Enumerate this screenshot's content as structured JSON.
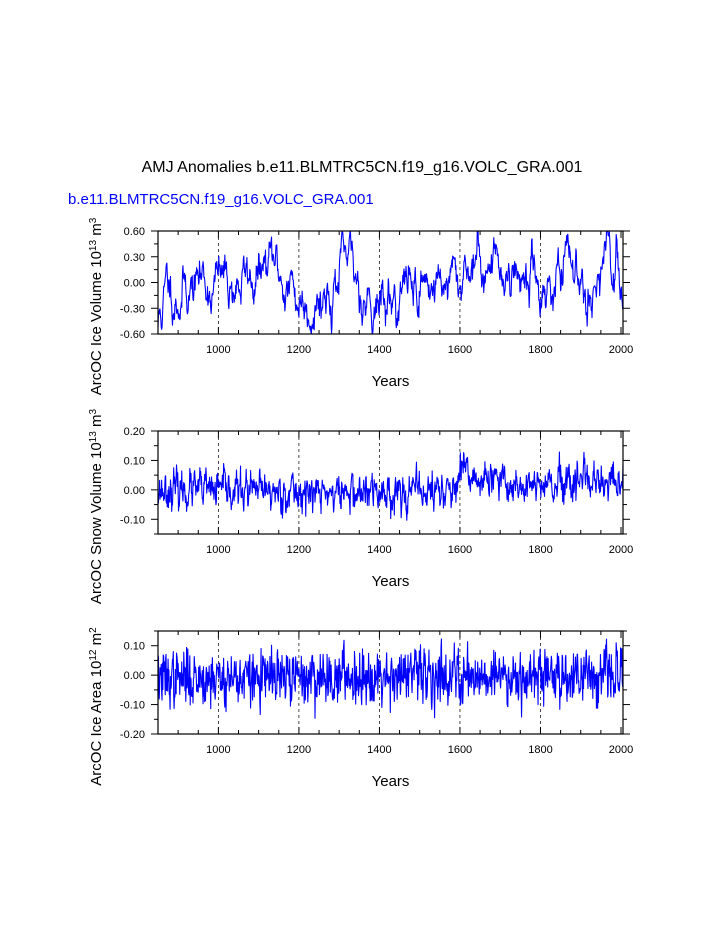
{
  "header": {
    "title": "AMJ Anomalies b.e11.BLMTRC5CN.f19_g16.VOLC_GRA.001",
    "subtitle": "b.e11.BLMTRC5CN.f19_g16.VOLC_GRA.001"
  },
  "colors": {
    "series": "#0000ff",
    "subtitle": "#0000ff",
    "axes": "#000000",
    "grid": "#000000"
  },
  "chart_data": [
    {
      "type": "line",
      "id": "ice-volume",
      "title": "",
      "xlabel": "Years",
      "ylabel": "ArcOC Ice Volume 10",
      "ylabel_exp": "13",
      "ylabel_unit": "m",
      "ylabel_unit_exp": "3",
      "xlim": [
        850,
        2005
      ],
      "ylim": [
        -0.6,
        0.6
      ],
      "xticks": [
        1000,
        1200,
        1400,
        1600,
        1800,
        2000
      ],
      "yticks": [
        -0.6,
        -0.3,
        0.0,
        0.3,
        0.6
      ],
      "ytick_labels": [
        "-0.60",
        "-0.30",
        "0.00",
        "0.30",
        "0.60"
      ],
      "vgrid": [
        1000,
        1200,
        1400,
        1600,
        1800
      ],
      "series": [
        {
          "name": "b.e11.BLMTRC5CN.f19_g16.VOLC_GRA.001",
          "seed": 11,
          "noise": 0.09,
          "persistence": 0.9,
          "max_amp": 0.6,
          "anchors": [
            [
              850,
              -0.5
            ],
            [
              870,
              -0.1
            ],
            [
              950,
              0.02
            ],
            [
              1050,
              0.0
            ],
            [
              1140,
              0.15
            ],
            [
              1200,
              -0.2
            ],
            [
              1260,
              -0.1
            ],
            [
              1310,
              0.12
            ],
            [
              1360,
              -0.05
            ],
            [
              1420,
              -0.25
            ],
            [
              1480,
              0.0
            ],
            [
              1560,
              0.05
            ],
            [
              1600,
              -0.1
            ],
            [
              1610,
              0.25
            ],
            [
              1700,
              0.2
            ],
            [
              1770,
              0.05
            ],
            [
              1800,
              0.0
            ],
            [
              1880,
              0.1
            ],
            [
              1960,
              0.1
            ],
            [
              2005,
              0.05
            ]
          ]
        }
      ]
    },
    {
      "type": "line",
      "id": "snow-volume",
      "title": "",
      "xlabel": "Years",
      "ylabel": "ArcOC Snow Volume 10",
      "ylabel_exp": "13",
      "ylabel_unit": "m",
      "ylabel_unit_exp": "3",
      "xlim": [
        850,
        2005
      ],
      "ylim": [
        -0.15,
        0.2
      ],
      "xticks": [
        1000,
        1200,
        1400,
        1600,
        1800,
        2000
      ],
      "yticks": [
        -0.1,
        0.0,
        0.1,
        0.2
      ],
      "ytick_labels": [
        "-0.10",
        "0.00",
        "0.10",
        "0.20"
      ],
      "vgrid": [
        1000,
        1200,
        1400,
        1600,
        1800
      ],
      "series": [
        {
          "name": "b.e11.BLMTRC5CN.f19_g16.VOLC_GRA.001",
          "seed": 23,
          "noise": 0.028,
          "persistence": 0.5,
          "max_amp": 0.16,
          "anchors": [
            [
              850,
              0.0
            ],
            [
              1000,
              0.0
            ],
            [
              1200,
              -0.01
            ],
            [
              1400,
              -0.01
            ],
            [
              1590,
              0.0
            ],
            [
              1610,
              0.06
            ],
            [
              1650,
              0.03
            ],
            [
              1800,
              0.01
            ],
            [
              2005,
              0.02
            ]
          ]
        }
      ]
    },
    {
      "type": "line",
      "id": "ice-area",
      "title": "",
      "xlabel": "Years",
      "ylabel": "ArcOC Ice Area 10",
      "ylabel_exp": "12",
      "ylabel_unit": "m",
      "ylabel_unit_exp": "2",
      "xlim": [
        850,
        2005
      ],
      "ylim": [
        -0.2,
        0.15
      ],
      "xticks": [
        1000,
        1200,
        1400,
        1600,
        1800,
        2000
      ],
      "yticks": [
        -0.2,
        -0.1,
        0.0,
        0.1
      ],
      "ytick_labels": [
        "-0.20",
        "-0.10",
        "0.00",
        "0.10"
      ],
      "vgrid": [
        1000,
        1200,
        1400,
        1600,
        1800
      ],
      "series": [
        {
          "name": "b.e11.BLMTRC5CN.f19_g16.VOLC_GRA.001",
          "seed": 37,
          "noise": 0.045,
          "persistence": 0.2,
          "max_amp": 0.17,
          "anchors": [
            [
              850,
              -0.01
            ],
            [
              1000,
              -0.01
            ],
            [
              1200,
              -0.01
            ],
            [
              1400,
              0.0
            ],
            [
              1600,
              0.0
            ],
            [
              1800,
              0.0
            ],
            [
              2005,
              0.0
            ]
          ]
        }
      ]
    }
  ]
}
